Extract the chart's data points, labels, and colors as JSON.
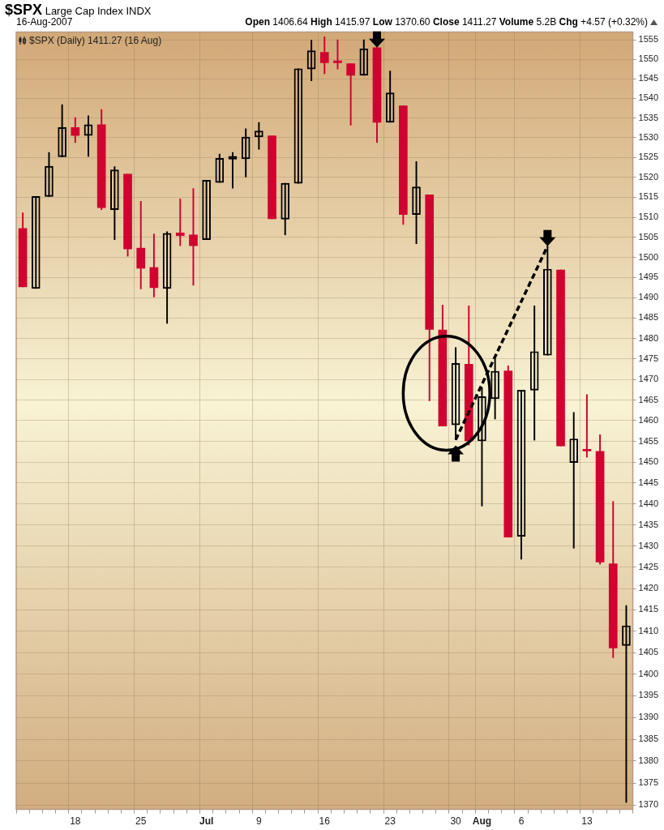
{
  "chart_data": {
    "type": "candlestick",
    "title": "$SPX",
    "subtitle": "Large Cap Index INDX",
    "annotations": [
      "16-Aug-2007",
      "Open 1406.64 High 1415.97 Low 1370.60 Close 1411.27 Volume 5.2B Chg +4.57 (+0.32%)",
      "$SPX (Daily) 1411.27 (16 Aug)"
    ],
    "categories": [
      null,
      null,
      null,
      null,
      "18",
      null,
      null,
      null,
      null,
      "25",
      null,
      null,
      null,
      null,
      "Jul",
      null,
      null,
      null,
      "9",
      null,
      null,
      null,
      null,
      "16",
      null,
      null,
      null,
      null,
      "23",
      null,
      null,
      null,
      null,
      "30",
      null,
      "Aug",
      null,
      null,
      "6",
      null,
      null,
      null,
      null,
      "13",
      null,
      null,
      null
    ],
    "ohlc": [
      [
        1507.2,
        1511.1,
        1492.7,
        1492.7
      ],
      [
        1492.3,
        1515.2,
        1492.3,
        1515.2
      ],
      [
        1515.2,
        1526.3,
        1515.2,
        1522.8
      ],
      [
        1525.2,
        1538.4,
        1525.2,
        1532.6
      ],
      [
        1532.6,
        1535.1,
        1528.8,
        1530.6
      ],
      [
        1530.6,
        1535.6,
        1525.3,
        1533.3
      ],
      [
        1533.3,
        1537.2,
        1511.9,
        1512.4
      ],
      [
        1511.9,
        1522.7,
        1504.4,
        1521.9
      ],
      [
        1520.8,
        1520.8,
        1500.3,
        1502.1
      ],
      [
        1502.3,
        1514.0,
        1492.2,
        1497.3
      ],
      [
        1497.5,
        1505.8,
        1490.2,
        1492.5
      ],
      [
        1492.3,
        1506.4,
        1483.7,
        1506.0
      ],
      [
        1506.1,
        1514.6,
        1502.9,
        1505.4
      ],
      [
        1505.6,
        1517.2,
        1493.1,
        1502.9
      ],
      [
        1504.4,
        1519.3,
        1504.4,
        1519.3
      ],
      [
        1518.7,
        1525.9,
        1518.7,
        1524.8
      ],
      [
        1524.6,
        1526.3,
        1517.3,
        1525.3
      ],
      [
        1524.7,
        1532.3,
        1520.1,
        1530.2
      ],
      [
        1530.2,
        1533.9,
        1527.1,
        1531.7
      ],
      [
        1530.5,
        1530.5,
        1509.6,
        1509.6
      ],
      [
        1509.5,
        1518.5,
        1505.6,
        1518.5
      ],
      [
        1518.5,
        1547.6,
        1518.5,
        1547.6
      ],
      [
        1547.5,
        1554.9,
        1544.5,
        1552.2
      ],
      [
        1551.8,
        1555.8,
        1546.3,
        1549.1
      ],
      [
        1549.6,
        1555.0,
        1547.5,
        1549.1
      ],
      [
        1548.9,
        1548.9,
        1533.2,
        1545.9
      ],
      [
        1545.9,
        1555.0,
        1545.9,
        1552.7
      ],
      [
        1553.0,
        1553.0,
        1528.8,
        1533.9
      ],
      [
        1533.9,
        1547.0,
        1533.9,
        1541.4
      ],
      [
        1538.1,
        1538.1,
        1508.2,
        1510.7
      ],
      [
        1510.7,
        1524.0,
        1503.4,
        1517.6
      ],
      [
        1515.6,
        1515.6,
        1464.8,
        1482.2
      ],
      [
        1482.1,
        1488.2,
        1458.7,
        1458.7
      ],
      [
        1459.0,
        1477.8,
        1455.4,
        1473.9
      ],
      [
        1473.7,
        1488.0,
        1454.1,
        1455.1
      ],
      [
        1455.1,
        1468.0,
        1439.5,
        1465.8
      ],
      [
        1465.3,
        1475.0,
        1460.4,
        1472.0
      ],
      [
        1472.1,
        1473.3,
        1432.1,
        1432.1
      ],
      [
        1432.3,
        1467.4,
        1426.9,
        1467.4
      ],
      [
        1467.4,
        1488.0,
        1455.3,
        1476.8
      ],
      [
        1475.9,
        1502.8,
        1475.9,
        1497.1
      ],
      [
        1496.9,
        1496.9,
        1453.9,
        1453.9
      ],
      [
        1449.9,
        1462.0,
        1429.5,
        1455.6
      ],
      [
        1453.1,
        1466.3,
        1451.2,
        1452.7
      ],
      [
        1452.6,
        1456.6,
        1425.7,
        1426.2
      ],
      [
        1425.8,
        1440.6,
        1403.8,
        1406.1
      ],
      [
        1406.64,
        1415.97,
        1370.6,
        1411.27
      ]
    ],
    "colors": [
      "#d0022f",
      "#000000",
      "#000000",
      "#000000",
      "#d0022f",
      "#000000",
      "#d0022f",
      "#000000",
      "#d0022f",
      "#d0022f",
      "#d0022f",
      "#000000",
      "#d0022f",
      "#d0022f",
      "#000000",
      "#000000",
      "#000000",
      "#000000",
      "#000000",
      "#d0022f",
      "#000000",
      "#000000",
      "#000000",
      "#d0022f",
      "#d0022f",
      "#d0022f",
      "#000000",
      "#d0022f",
      "#000000",
      "#d0022f",
      "#000000",
      "#d0022f",
      "#d0022f",
      "#000000",
      "#d0022f",
      "#000000",
      "#000000",
      "#d0022f",
      "#000000",
      "#000000",
      "#000000",
      "#d0022f",
      "#000000",
      "#d0022f",
      "#d0022f",
      "#d0022f",
      "#000000"
    ],
    "ylim": [
      1369,
      1557
    ],
    "yticks": [
      1370,
      1375,
      1380,
      1385,
      1390,
      1395,
      1400,
      1405,
      1410,
      1415,
      1420,
      1425,
      1430,
      1435,
      1440,
      1445,
      1450,
      1455,
      1460,
      1465,
      1470,
      1475,
      1480,
      1485,
      1490,
      1495,
      1500,
      1505,
      1510,
      1515,
      1520,
      1525,
      1530,
      1535,
      1540,
      1545,
      1550,
      1555
    ],
    "log": true,
    "grid": true
  }
}
